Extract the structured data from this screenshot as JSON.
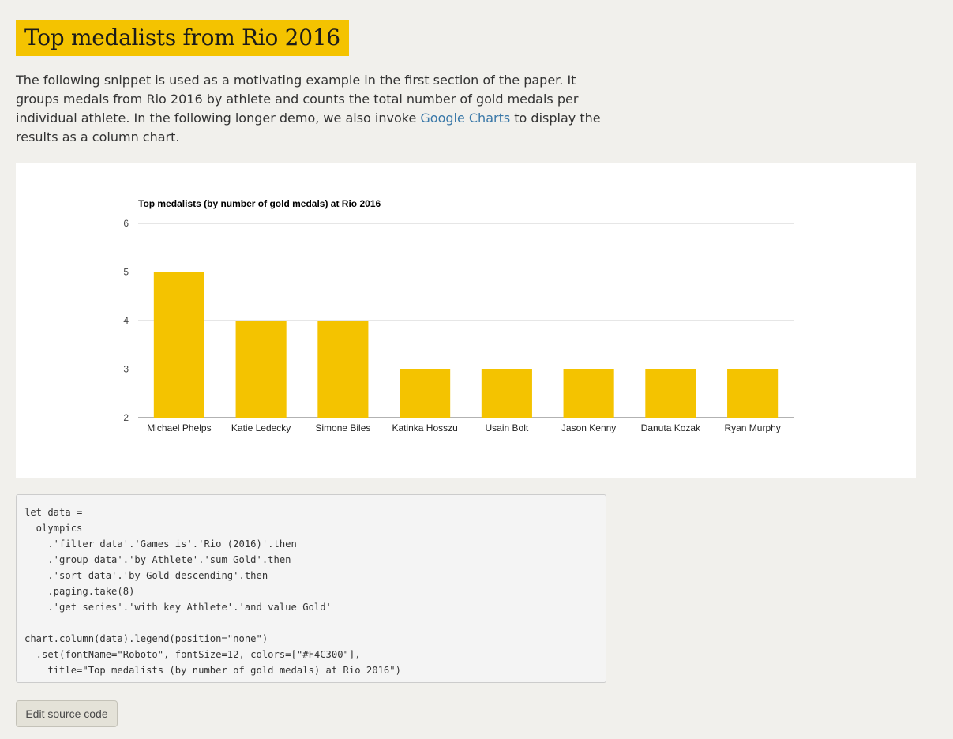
{
  "page": {
    "title": "Top medalists from Rio 2016"
  },
  "intro": {
    "text_before_link": "The following snippet is used as a motivating example in the first section of the paper. It groups medals from Rio 2016 by athlete and counts the total number of gold medals per individual athlete. In the following longer demo, we also invoke ",
    "link_text": "Google Charts",
    "text_after_link": " to display the results as a column chart."
  },
  "colors": {
    "accent": "#F4C300",
    "link": "#3a78a8",
    "gridline": "#cccccc"
  },
  "chart_data": {
    "type": "bar",
    "title": "Top medalists (by number of gold medals) at Rio 2016",
    "xlabel": "",
    "ylabel": "",
    "categories": [
      "Michael Phelps",
      "Katie Ledecky",
      "Simone Biles",
      "Katinka Hosszu",
      "Usain Bolt",
      "Jason Kenny",
      "Danuta Kozak",
      "Ryan Murphy"
    ],
    "values": [
      5,
      4,
      4,
      3,
      3,
      3,
      3,
      3
    ],
    "ylim": [
      2,
      6
    ],
    "yticks": [
      "6",
      "5",
      "4",
      "3",
      "2"
    ],
    "grid": true,
    "legend": "none",
    "color": "#F4C300"
  },
  "code": {
    "lines": [
      "let data =",
      "  olympics",
      "    .'filter data'.'Games is'.'Rio (2016)'.then",
      "    .'group data'.'by Athlete'.'sum Gold'.then",
      "    .'sort data'.'by Gold descending'.then",
      "    .paging.take(8)",
      "    .'get series'.'with key Athlete'.'and value Gold'",
      "",
      "chart.column(data).legend(position=\"none\")",
      "  .set(fontName=\"Roboto\", fontSize=12, colors=[\"#F4C300\"],",
      "    title=\"Top medalists (by number of gold medals) at Rio 2016\")"
    ]
  },
  "buttons": {
    "edit_source": "Edit source code"
  }
}
